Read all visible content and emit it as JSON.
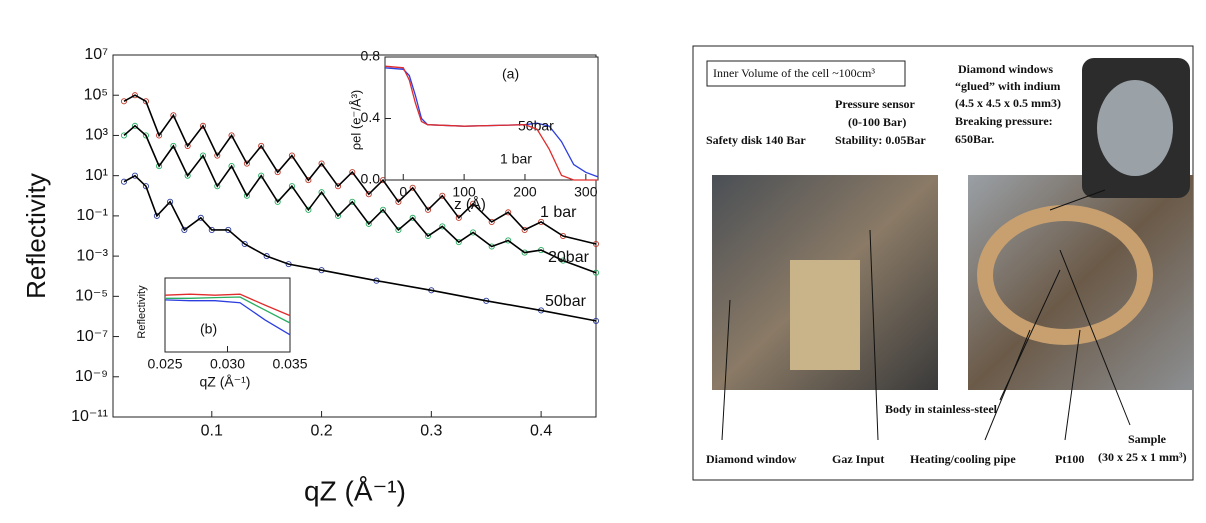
{
  "chart_data": [
    {
      "type": "line",
      "ylog": true,
      "markers": true,
      "line_color": "#000000",
      "xlabel": "qZ (Å⁻¹)",
      "ylabel": "Reflectivity",
      "xlim": [
        0.01,
        0.45
      ],
      "ylim": [
        1e-11,
        10000000.0
      ],
      "xticks": [
        0.1,
        0.2,
        0.3,
        0.4
      ],
      "yticks": [
        {
          "value": 10000000.0,
          "label": "10⁷"
        },
        {
          "value": 100000.0,
          "label": "10⁵"
        },
        {
          "value": 1000.0,
          "label": "10³"
        },
        {
          "value": 10,
          "label": "10¹"
        },
        {
          "value": 0.1,
          "label": "10⁻¹"
        },
        {
          "value": 0.001,
          "label": "10⁻³"
        },
        {
          "value": 1e-05,
          "label": "10⁻⁵"
        },
        {
          "value": 1e-07,
          "label": "10⁻⁷"
        },
        {
          "value": 1e-09,
          "label": "10⁻⁹"
        },
        {
          "value": 1e-11,
          "label": "10⁻¹¹"
        }
      ],
      "series": [
        {
          "name": "1 bar",
          "color": "#c0392b",
          "x": [
            0.02,
            0.03,
            0.04,
            0.052,
            0.065,
            0.078,
            0.092,
            0.105,
            0.118,
            0.132,
            0.145,
            0.16,
            0.173,
            0.188,
            0.2,
            0.215,
            0.228,
            0.243,
            0.256,
            0.27,
            0.283,
            0.297,
            0.31,
            0.325,
            0.338,
            0.355,
            0.37,
            0.385,
            0.4,
            0.42,
            0.45
          ],
          "values": [
            50000.0,
            100000.0,
            50000.0,
            1000.0,
            10000.0,
            300,
            3000,
            100,
            1000,
            40,
            300,
            15,
            100,
            6,
            40,
            3,
            15,
            1.2,
            6,
            0.5,
            2.5,
            0.2,
            1,
            0.08,
            0.4,
            0.05,
            0.15,
            0.02,
            0.05,
            0.01,
            0.004
          ]
        },
        {
          "name": "20bar",
          "color": "#27ae60",
          "x": [
            0.02,
            0.03,
            0.04,
            0.052,
            0.065,
            0.078,
            0.092,
            0.105,
            0.118,
            0.132,
            0.145,
            0.16,
            0.173,
            0.188,
            0.2,
            0.215,
            0.228,
            0.243,
            0.256,
            0.27,
            0.283,
            0.297,
            0.31,
            0.325,
            0.338,
            0.355,
            0.37,
            0.385,
            0.4,
            0.42,
            0.45
          ],
          "values": [
            1000,
            3000,
            1000,
            30,
            300,
            10,
            100,
            3,
            30,
            1,
            10,
            0.5,
            3,
            0.2,
            1.5,
            0.1,
            0.5,
            0.04,
            0.2,
            0.02,
            0.08,
            0.01,
            0.03,
            0.005,
            0.015,
            0.003,
            0.006,
            0.0015,
            0.002,
            0.0006,
            0.00015
          ]
        },
        {
          "name": "50bar",
          "color": "#2c3e9e",
          "x": [
            0.02,
            0.03,
            0.04,
            0.05,
            0.062,
            0.075,
            0.09,
            0.1,
            0.115,
            0.13,
            0.15,
            0.17,
            0.2,
            0.25,
            0.3,
            0.35,
            0.4,
            0.45
          ],
          "values": [
            5,
            10,
            3,
            0.1,
            0.5,
            0.02,
            0.08,
            0.02,
            0.02,
            0.004,
            0.001,
            0.0004,
            0.0002,
            6e-05,
            2e-05,
            6e-06,
            2e-06,
            6e-07
          ]
        }
      ]
    },
    {
      "type": "line",
      "ylog": false,
      "annotation": "(a)",
      "xlabel": "z (Å)",
      "ylabel": "ρel (e⁻/Å³)",
      "xlim": [
        -30,
        320
      ],
      "ylim": [
        0,
        0.8
      ],
      "xticks": [
        0,
        100,
        200,
        300
      ],
      "yticks": [
        {
          "value": 0,
          "label": "0.0"
        },
        0.4,
        0.8
      ],
      "series": [
        {
          "name": "50bar",
          "color": "#2c3ee0",
          "x": [
            -30,
            0,
            10,
            20,
            30,
            40,
            100,
            200,
            220,
            240,
            260,
            280,
            300,
            320
          ],
          "values": [
            0.73,
            0.72,
            0.68,
            0.55,
            0.4,
            0.36,
            0.35,
            0.36,
            0.37,
            0.35,
            0.25,
            0.1,
            0.05,
            0.02
          ]
        },
        {
          "name": "1 bar",
          "color": "#e02c2c",
          "x": [
            -30,
            0,
            10,
            20,
            30,
            40,
            100,
            200,
            220,
            240,
            260,
            280,
            300,
            320
          ],
          "values": [
            0.74,
            0.73,
            0.65,
            0.5,
            0.38,
            0.36,
            0.35,
            0.36,
            0.33,
            0.2,
            0.03,
            0,
            0,
            0
          ]
        }
      ]
    },
    {
      "type": "line",
      "ylog": true,
      "annotation": "(b)",
      "xlabel": "qZ (Å⁻¹)",
      "ylabel": "Reflectivity",
      "xlim": [
        0.025,
        0.035
      ],
      "ylim": [
        0.01,
        10
      ],
      "xticks": [
        0.025,
        {
          "value": 0.03,
          "label": "0.030"
        },
        0.035
      ],
      "series": [
        {
          "color": "#e02c2c",
          "x": [
            0.025,
            0.027,
            0.029,
            0.031,
            0.033,
            0.035
          ],
          "values": [
            2,
            2.2,
            2,
            2.2,
            0.8,
            0.3
          ]
        },
        {
          "color": "#27ae60",
          "x": [
            0.025,
            0.027,
            0.029,
            0.031,
            0.033,
            0.035
          ],
          "values": [
            1.5,
            1.5,
            1.6,
            1.7,
            0.5,
            0.15
          ]
        },
        {
          "color": "#2c3ee0",
          "x": [
            0.025,
            0.027,
            0.029,
            0.031,
            0.033,
            0.035
          ],
          "values": [
            1.3,
            1.2,
            1.2,
            1,
            0.2,
            0.05
          ]
        }
      ]
    }
  ],
  "photo": {
    "title_box": "Inner Volume of the cell ~100cm³",
    "diamond_windows": [
      "Diamond windows",
      "“glued” with indium",
      "(4.5 x 4.5 x 0.5 mm3)",
      "Breaking pressure:",
      "650Bar."
    ],
    "pressure_sensor": [
      "Pressure sensor",
      "(0-100 Bar)",
      "Stability: 0.05Bar"
    ],
    "safety_disk": "Safety disk 140 Bar",
    "body": "Body in stainless-steel",
    "diamond_window": "Diamond window",
    "gaz_input": "Gaz Input",
    "heating_pipe": "Heating/cooling pipe",
    "pt100": "Pt100",
    "sample": [
      "Sample",
      "(30 x 25 x 1 mm³)"
    ]
  }
}
